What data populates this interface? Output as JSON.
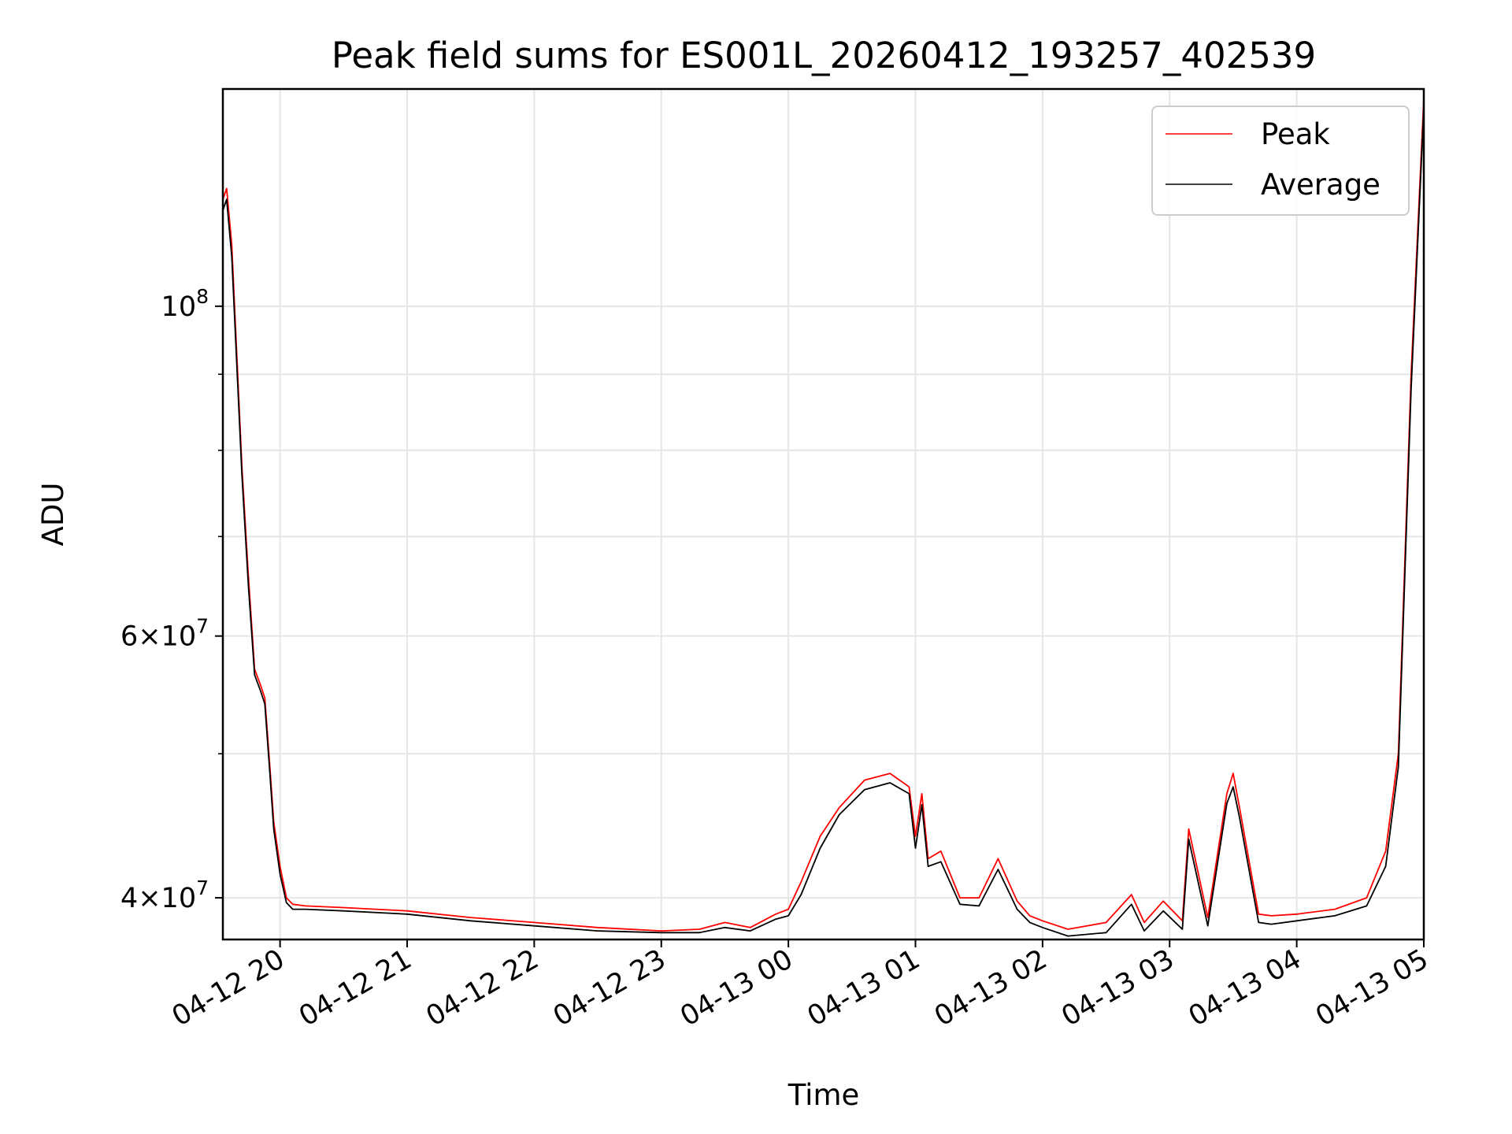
{
  "chart_data": {
    "type": "line",
    "title": "Peak field sums for ES001L_20260412_193257_402539",
    "xlabel": "Time",
    "ylabel": "ADU",
    "yscale": "log",
    "xlim_hours": [
      -0.45,
      9.0
    ],
    "ylim": [
      37500000,
      140000000
    ],
    "grid": true,
    "legend_position": "top-right",
    "x_ticks": [
      {
        "hour": 0,
        "label": "04-12 20"
      },
      {
        "hour": 1,
        "label": "04-12 21"
      },
      {
        "hour": 2,
        "label": "04-12 22"
      },
      {
        "hour": 3,
        "label": "04-12 23"
      },
      {
        "hour": 4,
        "label": "04-13 00"
      },
      {
        "hour": 5,
        "label": "04-13 01"
      },
      {
        "hour": 6,
        "label": "04-13 02"
      },
      {
        "hour": 7,
        "label": "04-13 03"
      },
      {
        "hour": 8,
        "label": "04-13 04"
      },
      {
        "hour": 9,
        "label": "04-13 05"
      }
    ],
    "y_ticks": [
      {
        "value": 100000000,
        "base": "10",
        "exp": "8"
      },
      {
        "value": 60000000,
        "mant": "6",
        "base": "10",
        "exp": "7"
      },
      {
        "value": 40000000,
        "mant": "4",
        "base": "10",
        "exp": "7"
      }
    ],
    "y_minor_ticks": [
      50000000,
      70000000,
      80000000,
      90000000
    ],
    "x_unit_note": "hours relative to 04-12 20:00",
    "series": [
      {
        "name": "Peak",
        "color": "#ff0000",
        "x": [
          -0.45,
          -0.42,
          -0.38,
          -0.3,
          -0.25,
          -0.2,
          -0.15,
          -0.12,
          -0.08,
          -0.05,
          0.0,
          0.05,
          0.1,
          0.2,
          0.5,
          1.0,
          1.5,
          2.0,
          2.5,
          3.0,
          3.3,
          3.5,
          3.7,
          3.9,
          4.0,
          4.1,
          4.25,
          4.4,
          4.6,
          4.8,
          4.95,
          5.0,
          5.05,
          5.1,
          5.2,
          5.35,
          5.5,
          5.65,
          5.8,
          5.9,
          6.0,
          6.2,
          6.5,
          6.7,
          6.8,
          6.95,
          7.1,
          7.15,
          7.3,
          7.45,
          7.5,
          7.55,
          7.7,
          7.8,
          8.0,
          8.3,
          8.55,
          8.7,
          8.8,
          8.9,
          9.0
        ],
        "y": [
          118000000,
          120000000,
          110000000,
          78000000,
          66000000,
          57000000,
          55500000,
          54500000,
          49000000,
          45000000,
          42000000,
          40000000,
          39600000,
          39500000,
          39400000,
          39200000,
          38800000,
          38500000,
          38200000,
          38000000,
          38100000,
          38500000,
          38200000,
          39000000,
          39300000,
          41000000,
          44000000,
          46000000,
          48000000,
          48500000,
          47500000,
          44000000,
          47000000,
          42500000,
          43000000,
          40000000,
          40000000,
          42500000,
          39800000,
          38900000,
          38600000,
          38100000,
          38500000,
          40200000,
          38500000,
          39800000,
          38600000,
          44500000,
          38800000,
          47000000,
          48500000,
          46000000,
          39000000,
          38900000,
          39000000,
          39300000,
          40000000,
          43000000,
          50000000,
          90000000,
          138000000
        ]
      },
      {
        "name": "Average",
        "color": "#000000",
        "x": [
          -0.45,
          -0.42,
          -0.38,
          -0.3,
          -0.25,
          -0.2,
          -0.15,
          -0.12,
          -0.08,
          -0.05,
          0.0,
          0.05,
          0.1,
          0.2,
          0.5,
          1.0,
          1.5,
          2.0,
          2.5,
          3.0,
          3.3,
          3.5,
          3.7,
          3.9,
          4.0,
          4.1,
          4.25,
          4.4,
          4.6,
          4.8,
          4.95,
          5.0,
          5.05,
          5.1,
          5.2,
          5.35,
          5.5,
          5.65,
          5.8,
          5.9,
          6.0,
          6.2,
          6.5,
          6.7,
          6.8,
          6.95,
          7.1,
          7.15,
          7.3,
          7.45,
          7.5,
          7.55,
          7.7,
          7.8,
          8.0,
          8.3,
          8.55,
          8.7,
          8.8,
          8.9,
          9.0
        ],
        "y": [
          116000000,
          118000000,
          108000000,
          77000000,
          65000000,
          56500000,
          55000000,
          54000000,
          48500000,
          44500000,
          41500000,
          39700000,
          39300000,
          39300000,
          39200000,
          39000000,
          38600000,
          38300000,
          38000000,
          37900000,
          37900000,
          38200000,
          38000000,
          38700000,
          38900000,
          40200000,
          43200000,
          45500000,
          47300000,
          47800000,
          47000000,
          43200000,
          46200000,
          42000000,
          42300000,
          39600000,
          39500000,
          41800000,
          39300000,
          38500000,
          38200000,
          37700000,
          37900000,
          39600000,
          38000000,
          39200000,
          38100000,
          43800000,
          38300000,
          46300000,
          47500000,
          45300000,
          38500000,
          38400000,
          38600000,
          38900000,
          39500000,
          42000000,
          49000000,
          88000000,
          136000000
        ]
      }
    ]
  }
}
